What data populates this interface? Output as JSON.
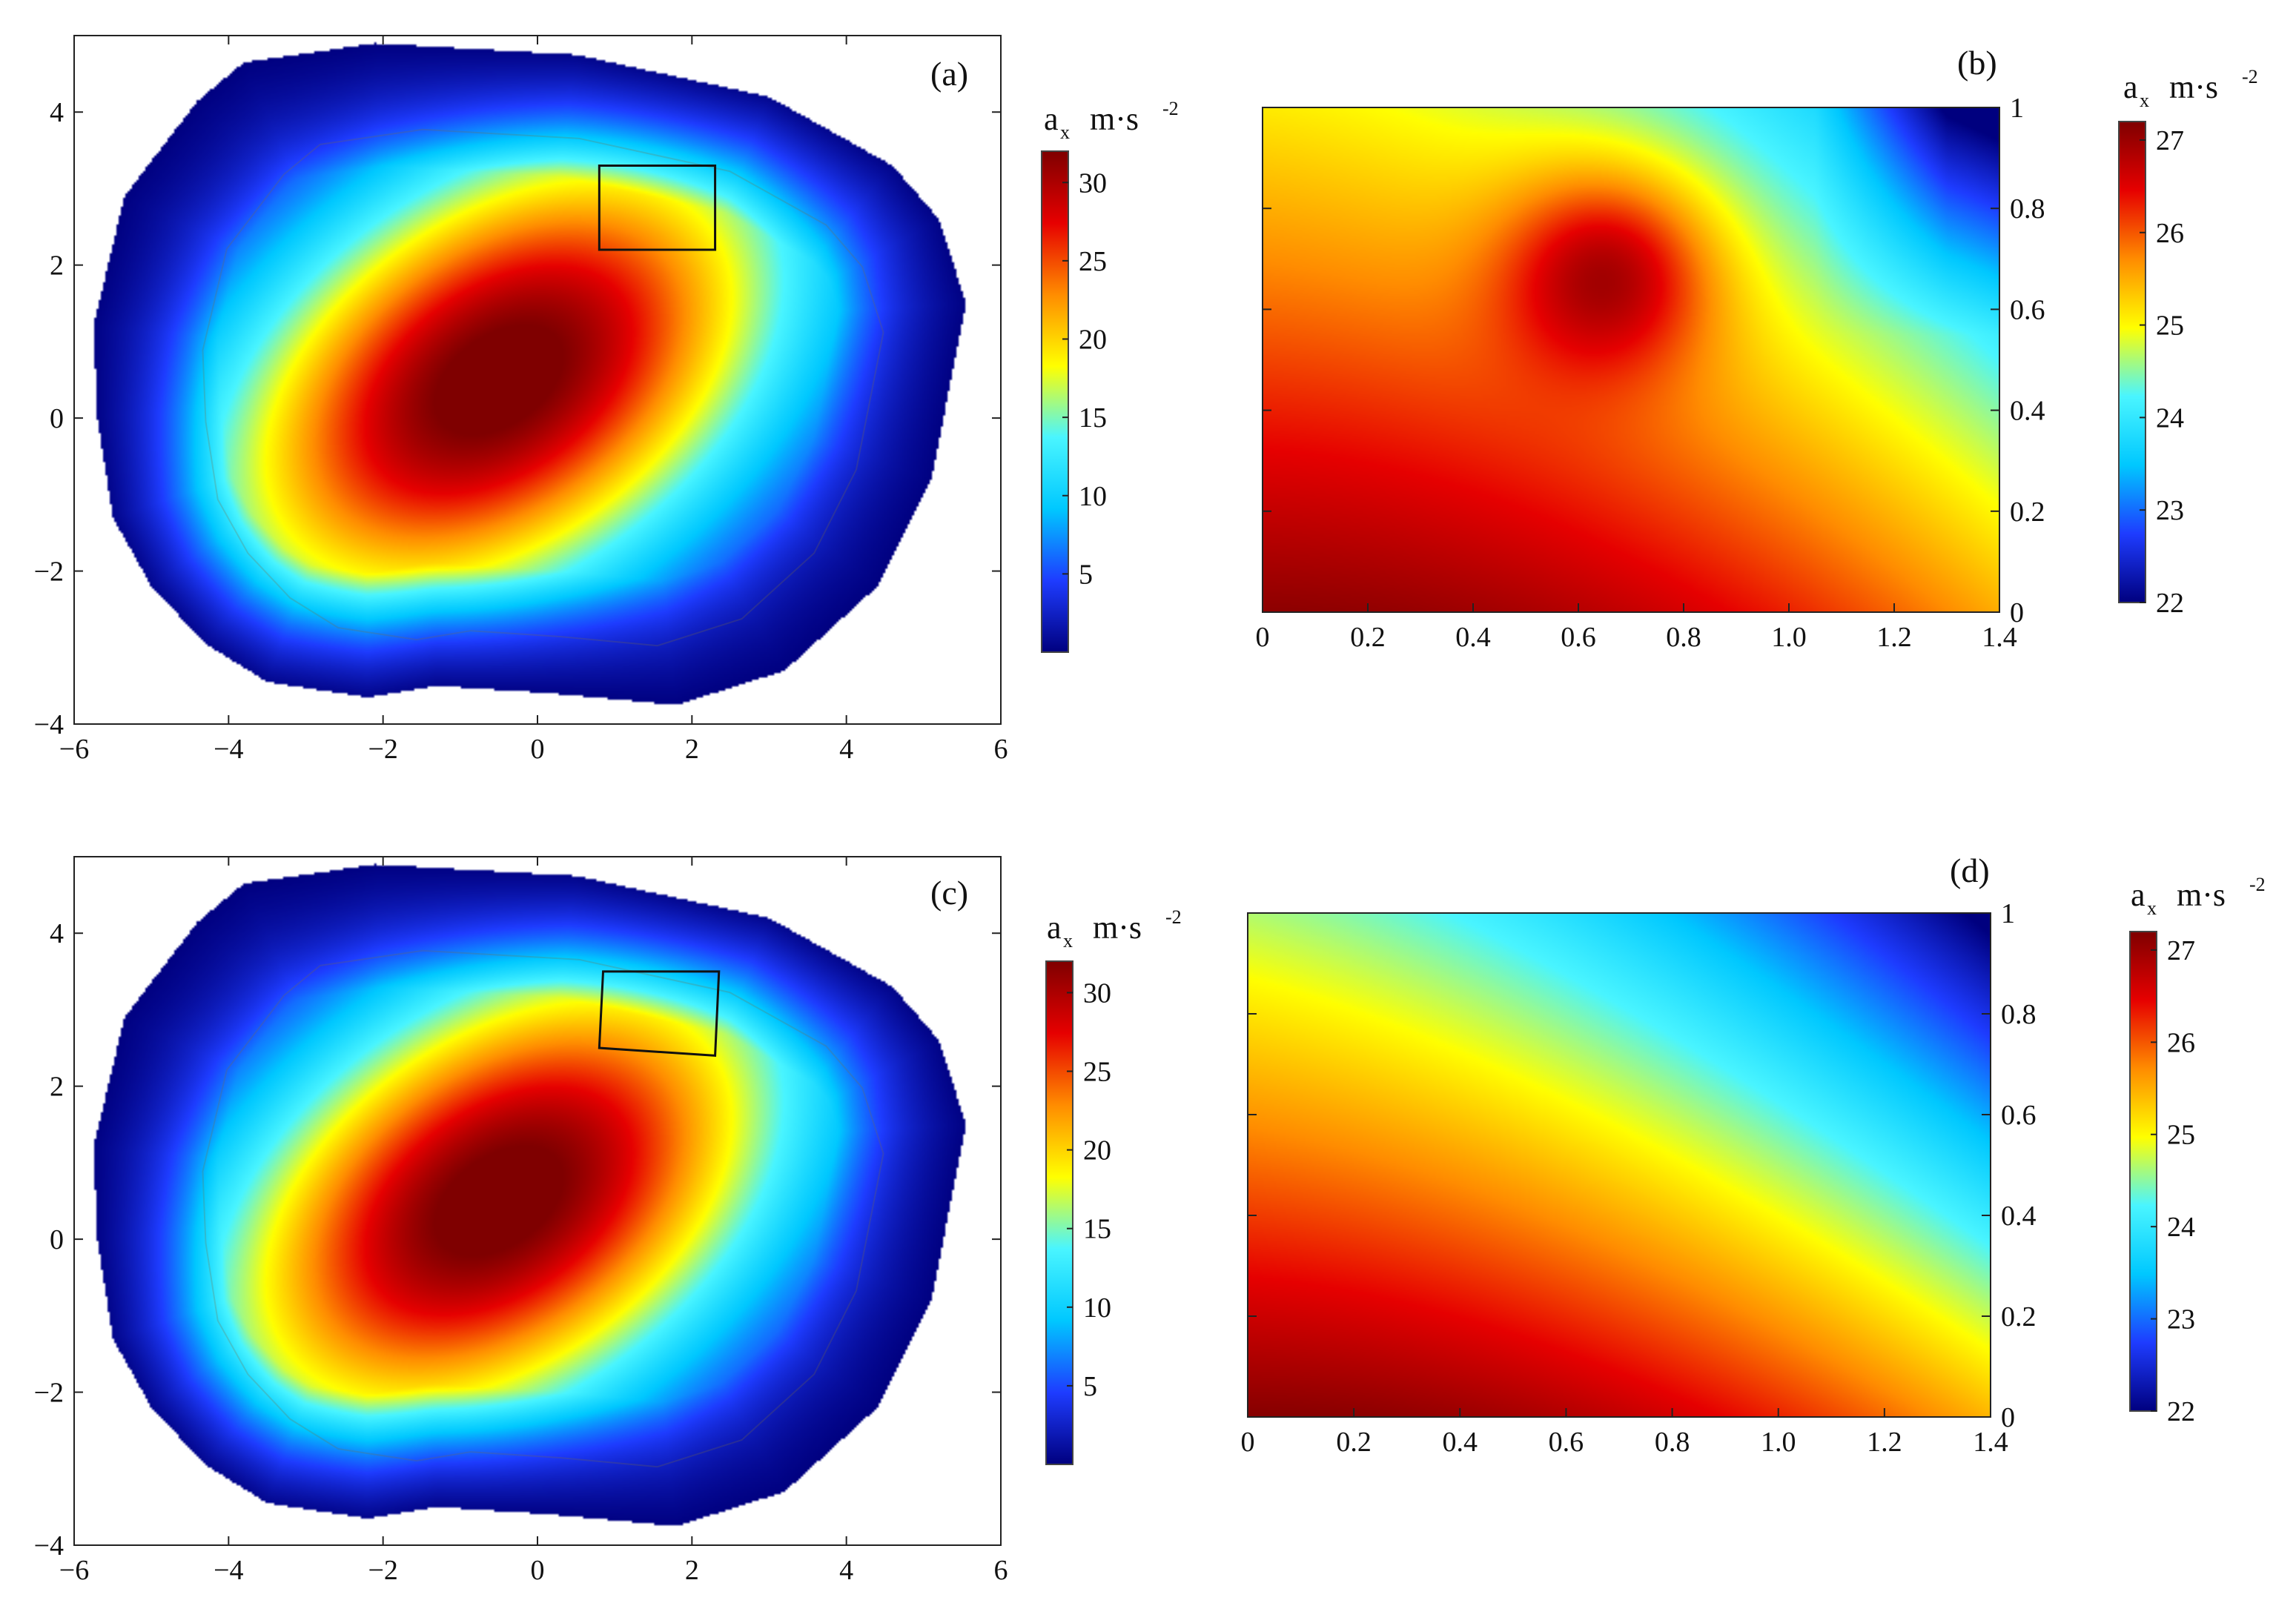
{
  "colormap": [
    "#00007f",
    "#1e3cff",
    "#00c8ff",
    "#4af5ff",
    "#ffff00",
    "#ff8c00",
    "#e60000",
    "#7f0000"
  ],
  "colorbar_units": {
    "symbol": "a",
    "subscript": "x",
    "unit": "m·s",
    "exponent": "-2"
  },
  "chart_data": [
    {
      "id": "a",
      "panel_label": "(a)",
      "type": "heatmap",
      "title": "",
      "xlabel": "",
      "ylabel": "",
      "xlim": [
        -6,
        6
      ],
      "ylim": [
        -4,
        5
      ],
      "xticks": [
        -6,
        -4,
        -2,
        0,
        2,
        4,
        6
      ],
      "yticks": [
        -4,
        -2,
        0,
        2,
        4
      ],
      "xtick_labels": [
        "−6",
        "−4",
        "−2",
        "0",
        "2",
        "4",
        "6"
      ],
      "ytick_labels": [
        "−4",
        "−2",
        "0",
        "2",
        "4"
      ],
      "outline": [
        [
          -3.8,
          4.65
        ],
        [
          -2.1,
          4.9
        ],
        [
          0.5,
          4.75
        ],
        [
          3.0,
          4.2
        ],
        [
          4.6,
          3.3
        ],
        [
          5.2,
          2.6
        ],
        [
          5.55,
          1.5
        ],
        [
          5.1,
          -0.8
        ],
        [
          4.4,
          -2.2
        ],
        [
          3.2,
          -3.3
        ],
        [
          1.8,
          -3.75
        ],
        [
          0.2,
          -3.6
        ],
        [
          -1.3,
          -3.5
        ],
        [
          -2.2,
          -3.65
        ],
        [
          -3.5,
          -3.45
        ],
        [
          -4.3,
          -2.95
        ],
        [
          -5.0,
          -2.2
        ],
        [
          -5.5,
          -1.3
        ],
        [
          -5.7,
          0.0
        ],
        [
          -5.75,
          1.2
        ],
        [
          -5.35,
          2.9
        ],
        [
          -4.4,
          4.15
        ]
      ],
      "peak": [
        -0.5,
        0.5
      ],
      "peak_value": 32,
      "highlight_box": [
        [
          0.8,
          3.3
        ],
        [
          2.3,
          3.3
        ],
        [
          2.3,
          2.2
        ],
        [
          0.8,
          2.2
        ]
      ],
      "colorbar": {
        "min": 0,
        "max": 32,
        "ticks": [
          5,
          10,
          15,
          20,
          25,
          30
        ],
        "tick_labels": [
          "5",
          "10",
          "15",
          "20",
          "25",
          "30"
        ]
      }
    },
    {
      "id": "b",
      "panel_label": "(b)",
      "type": "heatmap",
      "title": "",
      "xlabel": "",
      "ylabel": "",
      "xlim": [
        0,
        1.4
      ],
      "ylim": [
        0,
        1
      ],
      "xticks": [
        0,
        0.2,
        0.4,
        0.6,
        0.8,
        1.0,
        1.2,
        1.4
      ],
      "yticks": [
        0,
        0.2,
        0.4,
        0.6,
        0.8,
        1
      ],
      "xtick_labels": [
        "0",
        "0.2",
        "0.4",
        "0.6",
        "0.8",
        "1.0",
        "1.2",
        "1.4"
      ],
      "ytick_labels": [
        "0",
        "0.2",
        "0.4",
        "0.6",
        "0.8",
        "1"
      ],
      "colorbar": {
        "min": 22,
        "max": 27.2,
        "ticks": [
          22,
          23,
          24,
          25,
          26,
          27
        ],
        "tick_labels": [
          "22",
          "23",
          "24",
          "25",
          "26",
          "27"
        ]
      }
    },
    {
      "id": "c",
      "panel_label": "(c)",
      "type": "heatmap",
      "title": "",
      "xlabel": "",
      "ylabel": "",
      "xlim": [
        -6,
        6
      ],
      "ylim": [
        -4,
        5
      ],
      "xticks": [
        -6,
        -4,
        -2,
        0,
        2,
        4,
        6
      ],
      "yticks": [
        -4,
        -2,
        0,
        2,
        4
      ],
      "xtick_labels": [
        "−6",
        "−4",
        "−2",
        "0",
        "2",
        "4",
        "6"
      ],
      "ytick_labels": [
        "−4",
        "−2",
        "0",
        "2",
        "4"
      ],
      "outline": [
        [
          -3.8,
          4.65
        ],
        [
          -2.1,
          4.9
        ],
        [
          0.5,
          4.75
        ],
        [
          3.0,
          4.2
        ],
        [
          4.6,
          3.3
        ],
        [
          5.2,
          2.6
        ],
        [
          5.55,
          1.5
        ],
        [
          5.1,
          -0.8
        ],
        [
          4.4,
          -2.2
        ],
        [
          3.2,
          -3.3
        ],
        [
          1.8,
          -3.75
        ],
        [
          0.2,
          -3.6
        ],
        [
          -1.3,
          -3.5
        ],
        [
          -2.2,
          -3.65
        ],
        [
          -3.5,
          -3.45
        ],
        [
          -4.3,
          -2.95
        ],
        [
          -5.0,
          -2.2
        ],
        [
          -5.5,
          -1.3
        ],
        [
          -5.7,
          0.0
        ],
        [
          -5.75,
          1.2
        ],
        [
          -5.35,
          2.9
        ],
        [
          -4.4,
          4.15
        ]
      ],
      "peak": [
        -0.5,
        0.5
      ],
      "peak_value": 32,
      "highlight_box": [
        [
          0.85,
          3.5
        ],
        [
          2.35,
          3.5
        ],
        [
          2.3,
          2.4
        ],
        [
          0.8,
          2.5
        ]
      ],
      "colorbar": {
        "min": 0,
        "max": 32,
        "ticks": [
          5,
          10,
          15,
          20,
          25,
          30
        ],
        "tick_labels": [
          "5",
          "10",
          "15",
          "20",
          "25",
          "30"
        ]
      }
    },
    {
      "id": "d",
      "panel_label": "(d)",
      "type": "heatmap",
      "title": "",
      "xlabel": "",
      "ylabel": "",
      "xlim": [
        0,
        1.4
      ],
      "ylim": [
        0,
        1
      ],
      "xticks": [
        0,
        0.2,
        0.4,
        0.6,
        0.8,
        1.0,
        1.2,
        1.4
      ],
      "yticks": [
        0,
        0.2,
        0.4,
        0.6,
        0.8,
        1
      ],
      "xtick_labels": [
        "0",
        "0.2",
        "0.4",
        "0.6",
        "0.8",
        "1.0",
        "1.2",
        "1.4"
      ],
      "ytick_labels": [
        "0",
        "0.2",
        "0.4",
        "0.6",
        "0.8",
        "1"
      ],
      "colorbar": {
        "min": 22,
        "max": 27.2,
        "ticks": [
          22,
          23,
          24,
          25,
          26,
          27
        ],
        "tick_labels": [
          "22",
          "23",
          "24",
          "25",
          "26",
          "27"
        ]
      }
    }
  ]
}
